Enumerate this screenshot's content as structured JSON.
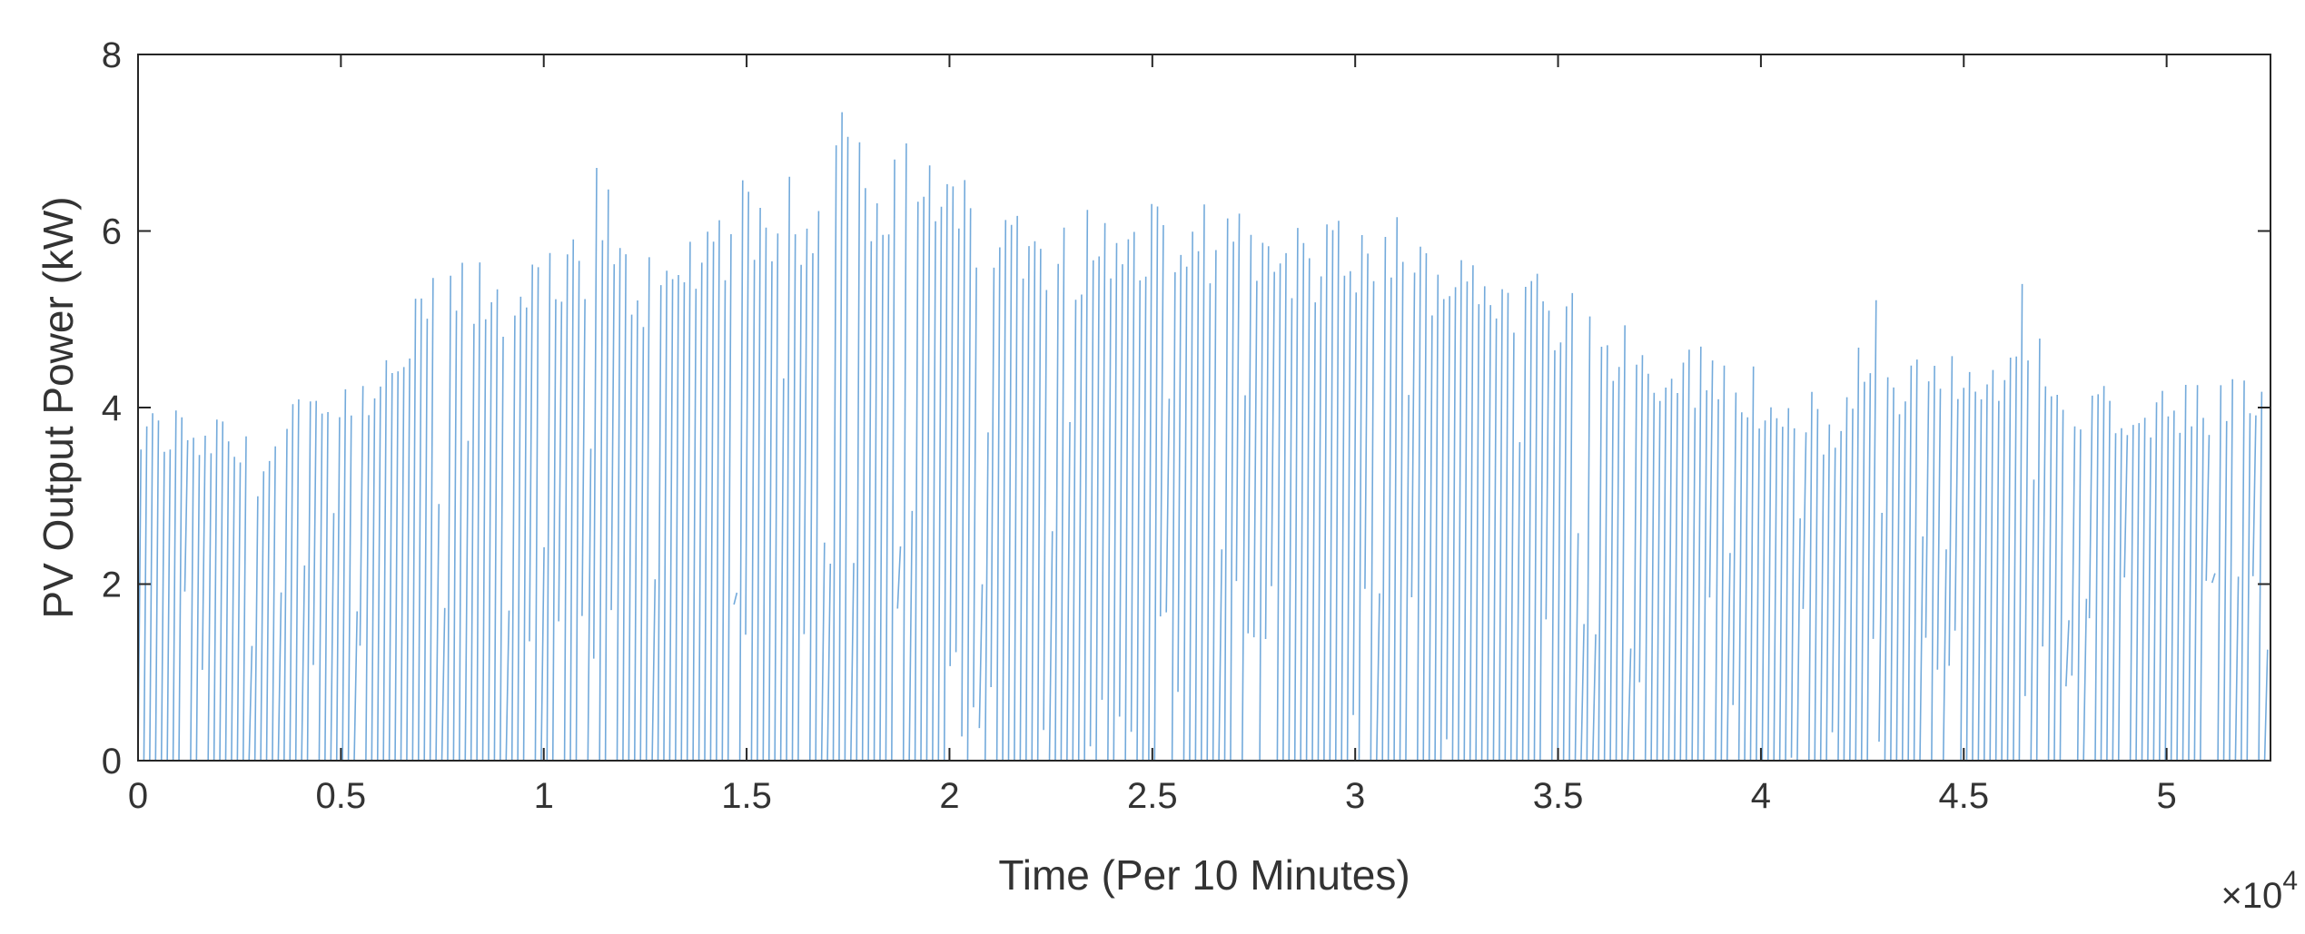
{
  "chart_data": {
    "type": "line",
    "title": "",
    "xlabel": "Time (Per 10 Minutes)",
    "ylabel": "PV Output Power (kW)",
    "xlim": [
      0,
      52560
    ],
    "ylim": [
      0,
      8
    ],
    "x_ticks": [
      0,
      5000,
      10000,
      15000,
      20000,
      25000,
      30000,
      35000,
      40000,
      45000,
      50000
    ],
    "x_tick_labels": [
      "0",
      "0.5",
      "1",
      "1.5",
      "2",
      "2.5",
      "3",
      "3.5",
      "4",
      "4.5",
      "5"
    ],
    "x_exponent_label": "×10",
    "x_exponent_power": "4",
    "y_ticks": [
      0,
      2,
      4,
      6,
      8
    ],
    "y_tick_labels": [
      "0",
      "2",
      "4",
      "6",
      "8"
    ],
    "grid": false,
    "line_color": "#5b9bd5",
    "axis_color": "#262626",
    "series": [
      {
        "x": [
          0,
          1000,
          2000,
          3000,
          4000,
          5000,
          6000,
          7000,
          7500,
          8000,
          9000,
          10000,
          11000,
          11300,
          12000,
          13000,
          14000,
          15000,
          16000,
          17000,
          17400,
          18000,
          19000,
          20000,
          21000,
          22000,
          23000,
          24000,
          25000,
          26000,
          27000,
          28000,
          29000,
          30000,
          31000,
          32000,
          33000,
          34000,
          35000,
          36000,
          37000,
          38000,
          39000,
          40000,
          41000,
          42000,
          42800,
          43000,
          44000,
          45000,
          46000,
          46500,
          47000,
          48000,
          49000,
          50000,
          51000,
          52000,
          52500
        ],
        "y": [
          3.9,
          4.0,
          3.9,
          3.5,
          4.1,
          4.2,
          4.4,
          5.3,
          5.6,
          5.6,
          5.5,
          5.6,
          6.0,
          6.9,
          5.8,
          5.6,
          6.2,
          6.5,
          6.5,
          6.6,
          7.4,
          6.9,
          6.9,
          6.6,
          6.3,
          6.3,
          6.1,
          6.2,
          6.3,
          6.3,
          6.1,
          6.0,
          6.0,
          6.1,
          6.1,
          5.9,
          5.8,
          5.6,
          5.4,
          5.1,
          4.8,
          4.7,
          4.6,
          4.4,
          4.2,
          3.9,
          5.3,
          4.5,
          4.7,
          4.5,
          4.5,
          5.5,
          4.5,
          4.4,
          4.1,
          4.2,
          4.2,
          4.3,
          4.5
        ]
      }
    ]
  }
}
